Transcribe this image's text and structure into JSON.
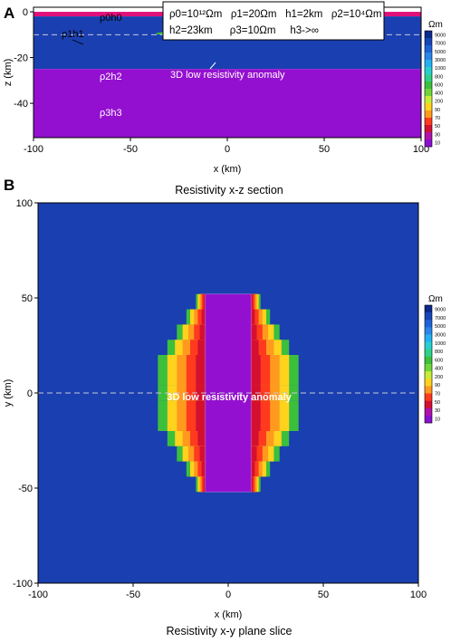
{
  "panel_a": {
    "label": "A",
    "params_line1": "ρ0=10¹²Ωm   ρ1=20Ωm   h1=2km   ρ2=10⁴Ωm",
    "params_line2": "h2=23km      ρ3=10Ωm     h3->∞",
    "layer0": "ρ0h0",
    "layer1": "ρ1h1",
    "layer2": "ρ2h2",
    "layer3": "ρ3h3",
    "anomaly_label": "3D low resistivity anomaly"
  },
  "panel_b": {
    "label": "B",
    "title": "Resistivity x-z section",
    "anomaly_label": "3D low resistivity anomaly",
    "caption": "Resistivity x-y plane slice"
  },
  "colorbar": {
    "unit": "Ωm",
    "ticks": [
      "9000",
      "7000",
      "5000",
      "3000",
      "1000",
      "800",
      "600",
      "400",
      "200",
      "90",
      "70",
      "50",
      "30",
      "10"
    ],
    "colors": [
      "#0a2a8c",
      "#1545b8",
      "#1e63d6",
      "#2a86ea",
      "#22b2f2",
      "#29cfcf",
      "#2fd18a",
      "#3cbf3c",
      "#6fd63a",
      "#c8ec3a",
      "#ffd21e",
      "#ff9a1e",
      "#ff3a1e",
      "#d41030",
      "#b012a8",
      "#8a10d0"
    ]
  },
  "chart_data": [
    {
      "type": "heatmap",
      "title": "",
      "xlabel": "x (km)",
      "ylabel": "z (km)",
      "xlim": [
        -100,
        100
      ],
      "ylim": [
        -55,
        2
      ],
      "xticks": [
        "-100",
        "-50",
        "0",
        "50",
        "100"
      ],
      "yticks": [
        "0",
        "-20",
        "-40"
      ],
      "layers": [
        {
          "name": "ρ1h1",
          "z_top": 0,
          "z_bottom": -2,
          "color": "#e0107a"
        },
        {
          "name": "ρ2h2",
          "z_top": -2,
          "z_bottom": -25,
          "color": "#1a3fb0"
        },
        {
          "name": "ρ3h3",
          "z_top": -25,
          "z_bottom": -55,
          "color": "#9410d0"
        }
      ],
      "anomaly": {
        "x": [
          -37,
          37
        ],
        "z": [
          -8,
          -11
        ]
      },
      "dashed_line_z": -10
    },
    {
      "type": "heatmap",
      "title": "",
      "xlabel": "x (km)",
      "ylabel": "y (km)",
      "xlim": [
        -100,
        100
      ],
      "ylim": [
        -100,
        100
      ],
      "xticks": [
        "-100",
        "-50",
        "0",
        "50",
        "100"
      ],
      "yticks": [
        "100",
        "50",
        "0",
        "-50",
        "-100"
      ],
      "background_color": "#1a3fb0",
      "inner_half_width": 12,
      "y_extent": 52,
      "anomaly_steps": [
        {
          "y": [
            44,
            52
          ],
          "x": [
            -17,
            17
          ]
        },
        {
          "y": [
            36,
            44
          ],
          "x": [
            -22,
            22
          ]
        },
        {
          "y": [
            28,
            36
          ],
          "x": [
            -27,
            27
          ]
        },
        {
          "y": [
            20,
            28
          ],
          "x": [
            -32,
            32
          ]
        },
        {
          "y": [
            4,
            20
          ],
          "x": [
            -37,
            37
          ]
        },
        {
          "y": [
            -4,
            4
          ],
          "x": [
            -37,
            37
          ]
        },
        {
          "y": [
            -20,
            -4
          ],
          "x": [
            -37,
            37
          ]
        },
        {
          "y": [
            -28,
            -20
          ],
          "x": [
            -32,
            32
          ]
        },
        {
          "y": [
            -36,
            -28
          ],
          "x": [
            -27,
            27
          ]
        },
        {
          "y": [
            -44,
            -36
          ],
          "x": [
            -22,
            22
          ]
        },
        {
          "y": [
            -52,
            -44
          ],
          "x": [
            -17,
            17
          ]
        }
      ],
      "dashed_line_y": 0
    }
  ]
}
